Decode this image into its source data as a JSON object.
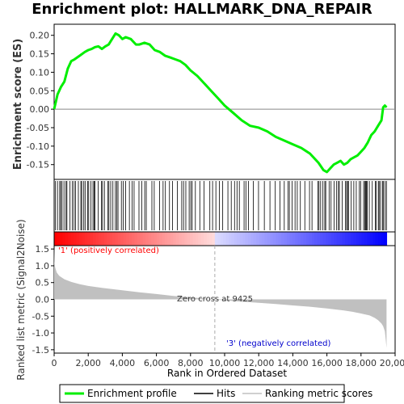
{
  "chart_data": {
    "type": "line",
    "title": "Enrichment plot: HALLMARK_DNA_REPAIR",
    "ylabel_top": "Enrichment score (ES)",
    "ylabel_bottom": "Ranked list metric (Signal2Noise)",
    "xlabel": "Rank in Ordered Dataset",
    "x_ticks": [
      "0",
      "2,000",
      "4,000",
      "6,000",
      "8,000",
      "10,000",
      "12,000",
      "14,000",
      "16,000",
      "18,000",
      "20,000"
    ],
    "x_tick_values": [
      0,
      2000,
      4000,
      6000,
      8000,
      10000,
      12000,
      14000,
      16000,
      18000,
      20000
    ],
    "xlim": [
      0,
      20000
    ],
    "n_genes": 19500,
    "es_ylim": [
      -0.19,
      0.23
    ],
    "es_ticks": [
      "0.20",
      "0.15",
      "0.10",
      "0.05",
      "0.00",
      "-0.05",
      "-0.10",
      "-0.15"
    ],
    "es_tick_values": [
      0.2,
      0.15,
      0.1,
      0.05,
      0.0,
      -0.05,
      -0.1,
      -0.15
    ],
    "metric_ylim": [
      -1.6,
      1.6
    ],
    "metric_ticks": [
      "1.5",
      "1.0",
      "0.5",
      "0.0",
      "-0.5",
      "-1.0",
      "-1.5"
    ],
    "metric_tick_values": [
      1.5,
      1.0,
      0.5,
      0.0,
      -0.5,
      -1.0,
      -1.5
    ],
    "series": [
      {
        "name": "Enrichment profile",
        "color": "#00ee00",
        "x": [
          0,
          100,
          200,
          400,
          600,
          800,
          1000,
          1200,
          1500,
          1800,
          2000,
          2200,
          2400,
          2600,
          2800,
          3000,
          3200,
          3400,
          3600,
          3800,
          4000,
          4200,
          4500,
          4800,
          5000,
          5300,
          5600,
          5900,
          6200,
          6500,
          6800,
          7100,
          7400,
          7700,
          8000,
          8400,
          8800,
          9200,
          9600,
          10000,
          10500,
          11000,
          11500,
          12000,
          12500,
          13000,
          13500,
          14000,
          14500,
          15000,
          15500,
          15800,
          16000,
          16200,
          16400,
          16600,
          16800,
          17000,
          17200,
          17400,
          17600,
          17800,
          18000,
          18200,
          18400,
          18600,
          18800,
          19000,
          19200,
          19300,
          19400,
          19500
        ],
        "y": [
          0.0,
          0.02,
          0.04,
          0.06,
          0.075,
          0.11,
          0.13,
          0.135,
          0.145,
          0.155,
          0.16,
          0.163,
          0.168,
          0.17,
          0.163,
          0.17,
          0.175,
          0.19,
          0.205,
          0.2,
          0.19,
          0.195,
          0.19,
          0.175,
          0.175,
          0.18,
          0.175,
          0.16,
          0.155,
          0.145,
          0.14,
          0.135,
          0.13,
          0.12,
          0.105,
          0.09,
          0.07,
          0.05,
          0.03,
          0.01,
          -0.01,
          -0.03,
          -0.045,
          -0.05,
          -0.06,
          -0.075,
          -0.085,
          -0.095,
          -0.105,
          -0.12,
          -0.145,
          -0.165,
          -0.17,
          -0.16,
          -0.15,
          -0.145,
          -0.14,
          -0.15,
          -0.145,
          -0.135,
          -0.13,
          -0.125,
          -0.115,
          -0.105,
          -0.09,
          -0.07,
          -0.06,
          -0.045,
          -0.03,
          0.005,
          0.01,
          0.005
        ]
      },
      {
        "name": "Hits",
        "color": "#000000"
      },
      {
        "name": "Ranking metric scores",
        "color": "#c0c0c0",
        "x": [
          0,
          20,
          60,
          150,
          300,
          600,
          1000,
          1500,
          2000,
          3000,
          4000,
          5000,
          6000,
          7000,
          8000,
          9000,
          9425,
          10000,
          11000,
          12000,
          13000,
          14000,
          15000,
          16000,
          17000,
          17500,
          18000,
          18500,
          18800,
          19000,
          19200,
          19300,
          19400,
          19450,
          19500
        ],
        "y": [
          1.55,
          1.1,
          0.95,
          0.8,
          0.7,
          0.6,
          0.52,
          0.45,
          0.4,
          0.33,
          0.27,
          0.21,
          0.16,
          0.1,
          0.06,
          0.02,
          0.0,
          -0.03,
          -0.07,
          -0.1,
          -0.14,
          -0.18,
          -0.22,
          -0.27,
          -0.33,
          -0.37,
          -0.42,
          -0.48,
          -0.55,
          -0.62,
          -0.72,
          -0.8,
          -0.95,
          -1.2,
          -1.45
        ]
      }
    ],
    "annotations": {
      "positive": "'1' (positively correlated)",
      "negative": "'3' (negatively correlated)",
      "zero_cross": "Zero cross at 9425",
      "zero_cross_rank": 9425,
      "positive_color": "#ff0000",
      "negative_color": "#0000cc"
    },
    "legend_position": "bottom"
  },
  "legend": {
    "items": [
      {
        "label": "Enrichment profile",
        "color": "#00ee00"
      },
      {
        "label": "Hits",
        "color": "#000000"
      },
      {
        "label": "Ranking metric scores",
        "color": "#c0c0c0"
      }
    ]
  }
}
